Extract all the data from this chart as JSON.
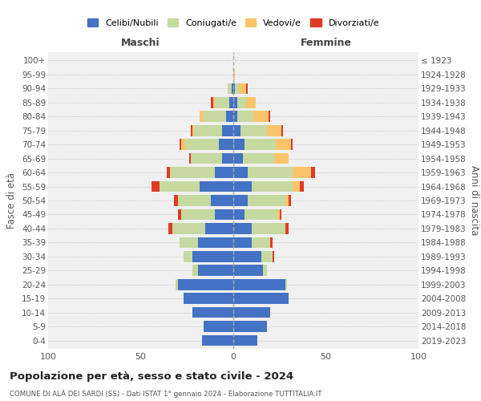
{
  "age_groups": [
    "0-4",
    "5-9",
    "10-14",
    "15-19",
    "20-24",
    "25-29",
    "30-34",
    "35-39",
    "40-44",
    "45-49",
    "50-54",
    "55-59",
    "60-64",
    "65-69",
    "70-74",
    "75-79",
    "80-84",
    "85-89",
    "90-94",
    "95-99",
    "100+"
  ],
  "birth_years": [
    "2019-2023",
    "2014-2018",
    "2009-2013",
    "2004-2008",
    "1999-2003",
    "1994-1998",
    "1989-1993",
    "1984-1988",
    "1979-1983",
    "1974-1978",
    "1969-1973",
    "1964-1968",
    "1959-1963",
    "1954-1958",
    "1949-1953",
    "1944-1948",
    "1939-1943",
    "1934-1938",
    "1929-1933",
    "1924-1928",
    "≤ 1923"
  ],
  "maschi": {
    "celibi": [
      17,
      16,
      22,
      27,
      30,
      19,
      22,
      19,
      15,
      10,
      12,
      18,
      10,
      6,
      8,
      6,
      4,
      2,
      1,
      0,
      0
    ],
    "coniugati": [
      0,
      0,
      0,
      0,
      1,
      3,
      5,
      10,
      18,
      18,
      18,
      22,
      24,
      17,
      18,
      15,
      12,
      8,
      2,
      0,
      0
    ],
    "vedovi": [
      0,
      0,
      0,
      0,
      0,
      0,
      0,
      0,
      0,
      0,
      0,
      0,
      0,
      0,
      2,
      1,
      2,
      1,
      0,
      0,
      0
    ],
    "divorziati": [
      0,
      0,
      0,
      0,
      0,
      0,
      0,
      0,
      2,
      2,
      2,
      4,
      2,
      1,
      1,
      1,
      0,
      1,
      0,
      0,
      0
    ]
  },
  "femmine": {
    "nubili": [
      13,
      18,
      20,
      30,
      28,
      16,
      15,
      10,
      10,
      6,
      8,
      10,
      8,
      5,
      6,
      4,
      2,
      2,
      1,
      0,
      0
    ],
    "coniugate": [
      0,
      0,
      0,
      0,
      1,
      2,
      6,
      10,
      18,
      18,
      20,
      22,
      24,
      17,
      17,
      14,
      9,
      5,
      2,
      0,
      0
    ],
    "vedove": [
      0,
      0,
      0,
      0,
      0,
      0,
      0,
      0,
      0,
      1,
      2,
      4,
      10,
      8,
      8,
      8,
      8,
      5,
      4,
      1,
      0
    ],
    "divorziate": [
      0,
      0,
      0,
      0,
      0,
      0,
      1,
      1,
      2,
      1,
      1,
      2,
      2,
      0,
      1,
      1,
      1,
      0,
      1,
      0,
      0
    ]
  },
  "colors": {
    "celibi": "#4472c4",
    "coniugati": "#c6d9a0",
    "vedovi": "#fac46a",
    "divorziati": "#e03b24"
  },
  "xlim": 100,
  "title": "Popolazione per età, sesso e stato civile - 2024",
  "subtitle": "COMUNE DI ALÀ DEI SARDI (SS) - Dati ISTAT 1° gennaio 2024 - Elaborazione TUTTITALIA.IT",
  "ylabel_left": "Fasce di età",
  "ylabel_right": "Anni di nascita",
  "xlabel_left": "Maschi",
  "xlabel_right": "Femmine",
  "legend_labels": [
    "Celibi/Nubili",
    "Coniugati/e",
    "Vedovi/e",
    "Divorziati/e"
  ],
  "bg_color": "#f0f0f0",
  "grid_color": "#cccccc"
}
